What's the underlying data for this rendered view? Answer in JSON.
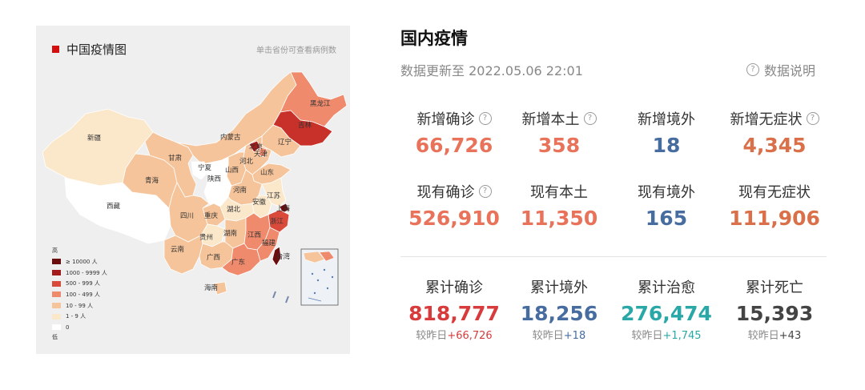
{
  "map": {
    "title": "中国疫情图",
    "hint": "单击省份可查看病例数",
    "scale": {
      "high_label": "高",
      "low_label": "低",
      "items": [
        {
          "label": "≥ 10000 人",
          "color": "#6b0d0d"
        },
        {
          "label": "1000 - 9999 人",
          "color": "#a51a1a"
        },
        {
          "label": "500 - 999 人",
          "color": "#d94a3a"
        },
        {
          "label": "100 - 499 人",
          "color": "#f08a6c"
        },
        {
          "label": "10 - 99 人",
          "color": "#f6c49a"
        },
        {
          "label": "1 - 9 人",
          "color": "#fbe8cb"
        },
        {
          "label": "0",
          "color": "#ffffff"
        }
      ]
    },
    "provinces": {
      "xinjiang": "新疆",
      "xizang": "西藏",
      "qinghai": "青海",
      "gansu": "甘肃",
      "neimenggu": "内蒙古",
      "heilongjiang": "黑龙江",
      "jilin": "吉林",
      "liaoning": "辽宁",
      "beijing": "北京",
      "tianjin": "天津",
      "hebei": "河北",
      "shanxi": "山西",
      "shandong": "山东",
      "ningxia": "宁夏",
      "shaanxi": "陕西",
      "henan": "河南",
      "jiangsu": "江苏",
      "anhui": "安徽",
      "shanghai": "上海",
      "sichuan": "四川",
      "chongqing": "重庆",
      "hubei": "湖北",
      "zhejiang": "浙江",
      "guizhou": "贵州",
      "hunan": "湖南",
      "jiangxi": "江西",
      "yunnan": "云南",
      "guangxi": "广西",
      "guangdong": "广东",
      "fujian": "福建",
      "taiwan": "台湾",
      "hainan": "海南"
    }
  },
  "stats": {
    "title": "国内疫情",
    "update_time": "数据更新至 2022.05.06 22:01",
    "data_note": "数据说明",
    "row1": [
      {
        "label": "新增确诊",
        "value": "66,726",
        "color": "#e8735a",
        "help": true
      },
      {
        "label": "新增本土",
        "value": "358",
        "color": "#e8735a",
        "help": true
      },
      {
        "label": "新增境外",
        "value": "18",
        "color": "#476da0",
        "help": false
      },
      {
        "label": "新增无症状",
        "value": "4,345",
        "color": "#d9704a",
        "help": true
      }
    ],
    "row2": [
      {
        "label": "现有确诊",
        "value": "526,910",
        "color": "#e8735a",
        "help": true
      },
      {
        "label": "现有本土",
        "value": "11,350",
        "color": "#e8735a",
        "help": false
      },
      {
        "label": "现有境外",
        "value": "165",
        "color": "#476da0",
        "help": false
      },
      {
        "label": "现有无症状",
        "value": "111,906",
        "color": "#d9704a",
        "help": false
      }
    ],
    "row3": [
      {
        "label": "累计确诊",
        "value": "818,777",
        "color": "#d73b3b",
        "delta_prefix": "较昨日",
        "delta": "+66,726",
        "delta_color": "#d73b3b"
      },
      {
        "label": "累计境外",
        "value": "18,256",
        "color": "#476da0",
        "delta_prefix": "较昨日",
        "delta": "+18",
        "delta_color": "#476da0"
      },
      {
        "label": "累计治愈",
        "value": "276,474",
        "color": "#2aa8a8",
        "delta_prefix": "较昨日",
        "delta": "+1,745",
        "delta_color": "#2aa8a8"
      },
      {
        "label": "累计死亡",
        "value": "15,393",
        "color": "#444444",
        "delta_prefix": "较昨日",
        "delta": "+43",
        "delta_color": "#444444"
      }
    ]
  }
}
